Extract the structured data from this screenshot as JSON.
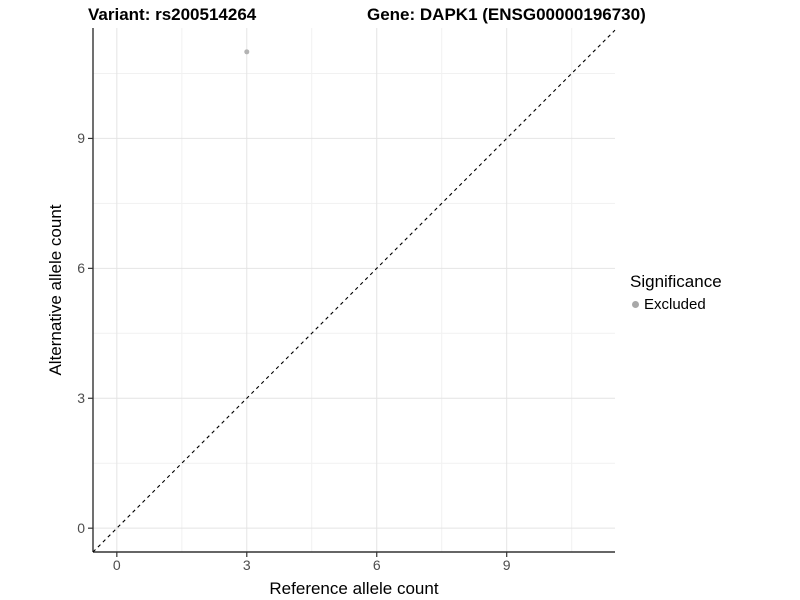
{
  "figure": {
    "title_left": "Variant: rs200514264",
    "title_right": "Gene: DAPK1 (ENSG00000196730)",
    "x_axis_label": "Reference allele count",
    "y_axis_label": "Alternative allele count"
  },
  "legend": {
    "title": "Significance",
    "items": [
      {
        "label": "Excluded",
        "color": "#a8a8a8",
        "marker": "circle"
      }
    ]
  },
  "chart_data": {
    "type": "scatter",
    "title": "Variant: rs200514264    Gene: DAPK1 (ENSG00000196730)",
    "xlabel": "Reference allele count",
    "ylabel": "Alternative allele count",
    "xlim": [
      -0.55,
      11.5
    ],
    "ylim": [
      -0.55,
      11.55
    ],
    "x_ticks": [
      0,
      3,
      6,
      9
    ],
    "y_ticks": [
      0,
      3,
      6,
      9
    ],
    "x_minor_ticks": [
      1.5,
      4.5,
      7.5,
      10.5
    ],
    "y_minor_ticks": [
      1.5,
      4.5,
      7.5,
      10.5
    ],
    "grid": true,
    "legend_position": "right",
    "series": [
      {
        "name": "Excluded",
        "color": "#b3b3b3",
        "point_radius": 2.5,
        "points": [
          {
            "x": 3,
            "y": 11
          }
        ]
      }
    ],
    "reference_line": {
      "type": "identity y=x",
      "style": "dashed",
      "color": "#000000",
      "from": [
        -0.55,
        -0.55
      ],
      "to": [
        11.5,
        11.5
      ]
    }
  },
  "style": {
    "grid_major_color": "#e4e4e4",
    "grid_minor_color": "#f1f1f1",
    "axis_line_color": "#333333",
    "tick_color": "#333333",
    "tick_label_color": "#4d4d4d",
    "background": "#ffffff"
  }
}
